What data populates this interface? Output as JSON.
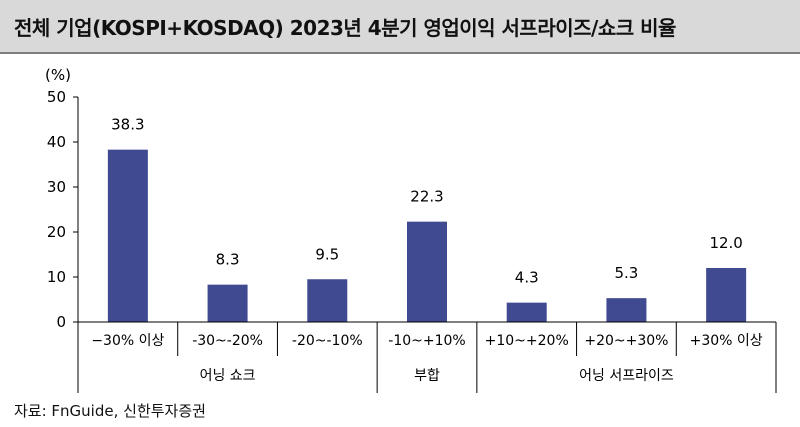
{
  "title": "전체 기업(KOSPI+KOSDAQ) 2023년 4분기 영업이익 서프라이즈/쇼크 비율",
  "source": "자료: FnGuide, 신한투자증권",
  "colors": {
    "bar": "#3f4a91",
    "axis": "#000000",
    "title_bg": "#d9d9d9"
  },
  "chart_data": {
    "type": "bar",
    "unit_label": "(%)",
    "categories": [
      "−30% 이상",
      "-30~-20%",
      "-20~-10%",
      "-10~+10%",
      "+10~+20%",
      "+20~+30%",
      "+30% 이상"
    ],
    "values": [
      38.3,
      8.3,
      9.5,
      22.3,
      4.3,
      5.3,
      12.0
    ],
    "value_labels": [
      "38.3",
      "8.3",
      "9.5",
      "22.3",
      "4.3",
      "5.3",
      "12.0"
    ],
    "groups": [
      {
        "label": "어닝 쇼크",
        "span": [
          0,
          2
        ]
      },
      {
        "label": "부합",
        "span": [
          3,
          3
        ]
      },
      {
        "label": "어닝 서프라이즈",
        "span": [
          4,
          6
        ]
      }
    ],
    "yticks": [
      0,
      10,
      20,
      30,
      40,
      50
    ],
    "ylim": [
      0,
      50
    ],
    "grid": false
  }
}
